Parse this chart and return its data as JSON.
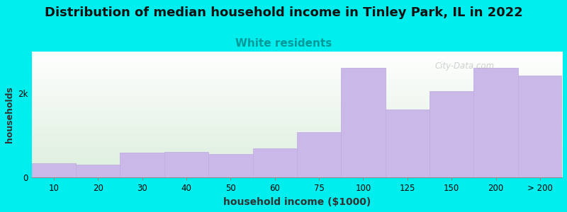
{
  "title": "Distribution of median household income in Tinley Park, IL in 2022",
  "subtitle": "White residents",
  "xlabel": "household income ($1000)",
  "ylabel": "households",
  "categories": [
    "10",
    "20",
    "30",
    "40",
    "50",
    "60",
    "75",
    "100",
    "125",
    "150",
    "200",
    "> 200"
  ],
  "values": [
    350,
    310,
    600,
    610,
    560,
    700,
    1080,
    2620,
    1620,
    2050,
    2620,
    2420
  ],
  "bar_color": "#C9B8E8",
  "bar_edge_color": "#C0AEE0",
  "background_outer": "#00EEEE",
  "background_plot_top": "#FFFFFF",
  "background_plot_bottom": "#DCEEDD",
  "title_fontsize": 13,
  "subtitle_fontsize": 11,
  "subtitle_color": "#009999",
  "xlabel_fontsize": 10,
  "ylabel_fontsize": 9,
  "tick_fontsize": 8.5,
  "ylim": [
    0,
    3000
  ],
  "ytick_values": [
    0,
    2000
  ],
  "watermark": "City-Data.com"
}
